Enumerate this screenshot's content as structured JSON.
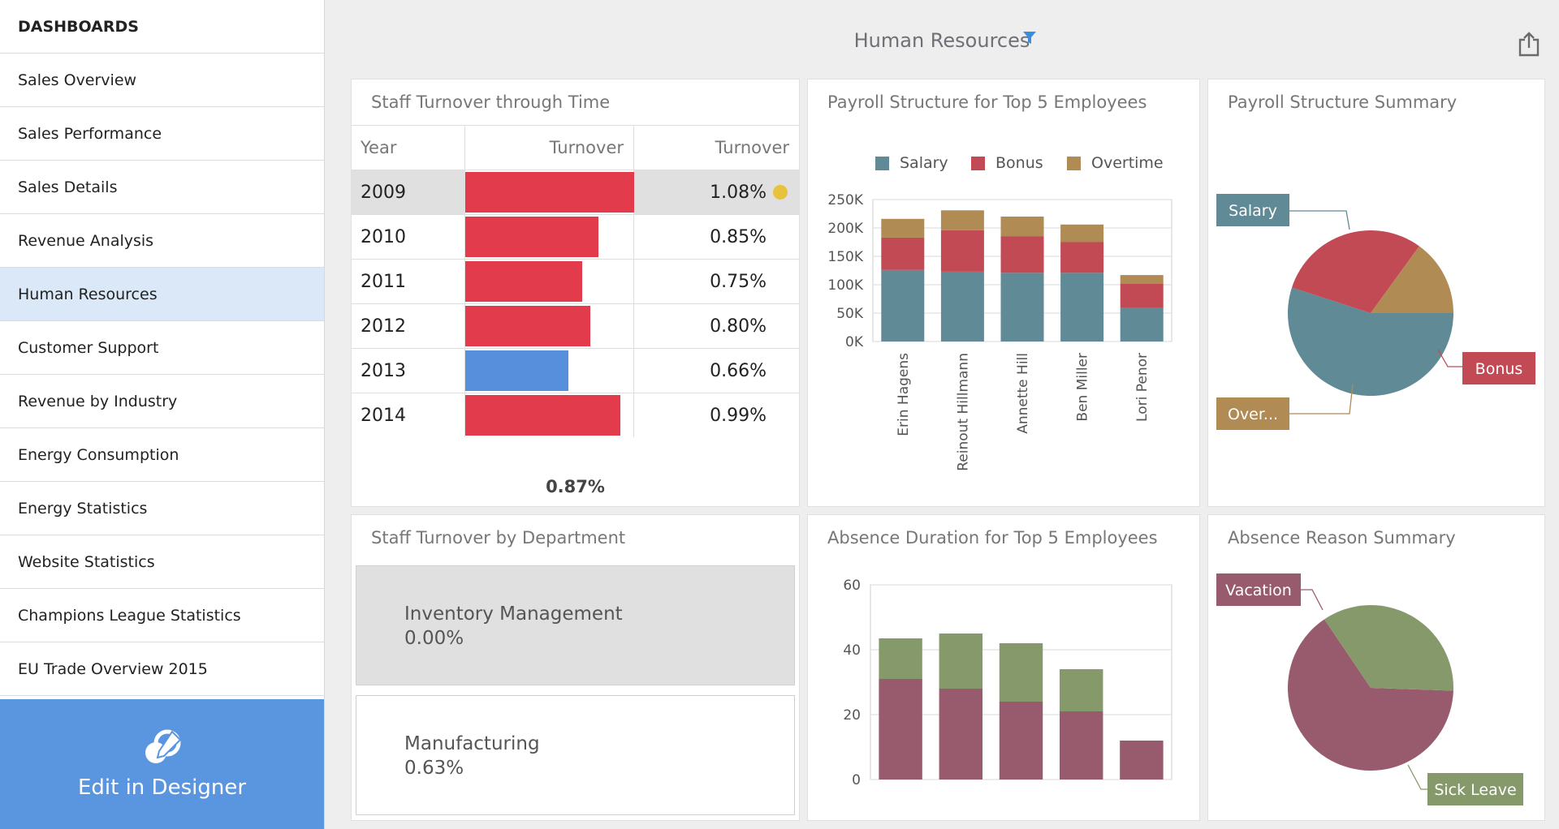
{
  "sidebar": {
    "header": "DASHBOARDS",
    "items": [
      {
        "label": "Sales Overview"
      },
      {
        "label": "Sales Performance"
      },
      {
        "label": "Sales Details"
      },
      {
        "label": "Revenue Analysis"
      },
      {
        "label": "Human Resources",
        "active": true
      },
      {
        "label": "Customer Support"
      },
      {
        "label": "Revenue by Industry"
      },
      {
        "label": "Energy Consumption"
      },
      {
        "label": "Energy Statistics"
      },
      {
        "label": "Website Statistics"
      },
      {
        "label": "Champions League Statistics"
      },
      {
        "label": "EU Trade Overview 2015"
      }
    ],
    "designer_label": "Edit in Designer"
  },
  "dashboard": {
    "title": "Human Resources",
    "filter_icon": "filter-icon",
    "export_icon": "export-icon"
  },
  "turnover_grid": {
    "title": "Staff Turnover through Time",
    "columns": [
      "Year",
      "Turnover",
      "Turnover"
    ],
    "rows": [
      {
        "year": "2009",
        "value": 1.08,
        "display": "1.08%",
        "color": "#e23b4c",
        "selected": true
      },
      {
        "year": "2010",
        "value": 0.85,
        "display": "0.85%",
        "color": "#e23b4c"
      },
      {
        "year": "2011",
        "value": 0.75,
        "display": "0.75%",
        "color": "#e23b4c"
      },
      {
        "year": "2012",
        "value": 0.8,
        "display": "0.80%",
        "color": "#e23b4c"
      },
      {
        "year": "2013",
        "value": 0.66,
        "display": "0.66%",
        "color": "#578fdc"
      },
      {
        "year": "2014",
        "value": 0.99,
        "display": "0.99%",
        "color": "#e23b4c"
      }
    ],
    "bar_max": 1.08,
    "total": "0.87%"
  },
  "department_cards": {
    "title": "Staff Turnover by Department",
    "items": [
      {
        "name": "Inventory Management",
        "value": "0.00%",
        "selected": true
      },
      {
        "name": "Manufacturing",
        "value": "0.63%"
      }
    ]
  },
  "colors": {
    "salary": "#5f8a96",
    "bonus": "#c24a55",
    "overtime": "#b08b53",
    "vacation": "#985b6e",
    "sick_leave": "#85996a",
    "accent": "#5a95e0"
  },
  "chart_data": [
    {
      "type": "bar",
      "stacked": true,
      "title": "Payroll Structure for Top 5 Employees",
      "categories": [
        "Erin Hagens",
        "Reinout Hillmann",
        "Annette Hill",
        "Ben Miller",
        "Lori Penor"
      ],
      "series": [
        {
          "name": "Salary",
          "color": "#5f8a96",
          "values": [
            126000,
            123000,
            121000,
            121000,
            60000
          ]
        },
        {
          "name": "Bonus",
          "color": "#c24a55",
          "values": [
            57000,
            73000,
            64000,
            54000,
            42000
          ]
        },
        {
          "name": "Overtime",
          "color": "#b08b53",
          "values": [
            33000,
            35000,
            35000,
            31000,
            15000
          ]
        }
      ],
      "ylim": [
        0,
        250000
      ],
      "yticks": [
        "0K",
        "50K",
        "100K",
        "150K",
        "200K",
        "250K"
      ],
      "grid": true,
      "legend": "top"
    },
    {
      "type": "pie",
      "title": "Payroll Structure Summary",
      "slices": [
        {
          "label": "Salary",
          "value": 55,
          "color": "#5f8a96"
        },
        {
          "label": "Bonus",
          "value": 30,
          "color": "#c24a55"
        },
        {
          "label": "Over...",
          "value": 15,
          "color": "#b08b53"
        }
      ]
    },
    {
      "type": "bar",
      "stacked": true,
      "title": "Absence Duration for Top 5 Employees",
      "categories": [
        "",
        "",
        "",
        "",
        ""
      ],
      "series": [
        {
          "name": "",
          "color": "#985b6e",
          "values": [
            31,
            28,
            24,
            21,
            12
          ]
        },
        {
          "name": "",
          "color": "#85996a",
          "values": [
            12.5,
            17,
            18,
            13,
            0
          ]
        }
      ],
      "ylim": [
        0,
        60
      ],
      "yticks": [
        "0",
        "20",
        "40",
        "60"
      ],
      "grid": true
    },
    {
      "type": "pie",
      "title": "Absence Reason Summary",
      "slices": [
        {
          "label": "Vacation",
          "value": 65,
          "color": "#985b6e"
        },
        {
          "label": "Sick Leave",
          "value": 35,
          "color": "#85996a"
        }
      ]
    }
  ]
}
